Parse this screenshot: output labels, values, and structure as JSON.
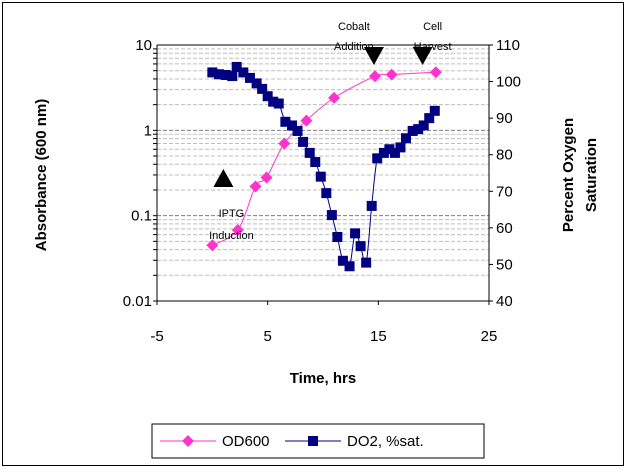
{
  "chart_data": {
    "type": "line",
    "xlabel": "Time, hrs",
    "ylabel_left": "Absorbance (600 nm)",
    "ylabel_right": "Percent Oxygen Saturation",
    "x_range": [
      -5,
      25
    ],
    "x_ticks": [
      "-5",
      "5",
      "15",
      "25"
    ],
    "y_left_range": [
      0.01,
      10
    ],
    "y_left_scale": "log",
    "y_left_ticks": [
      "0.01",
      "0.1",
      "1",
      "10"
    ],
    "y_right_range": [
      40,
      110
    ],
    "y_right_ticks": [
      "40",
      "50",
      "60",
      "70",
      "80",
      "90",
      "100",
      "110"
    ],
    "grid": "horizontal",
    "legend_position": "bottom",
    "series": [
      {
        "name": "OD600",
        "axis": "left",
        "color": "#ff33cc",
        "marker": "diamond",
        "x": [
          0,
          2.3,
          3.9,
          4.9,
          6.5,
          8.5,
          11,
          14.7,
          16.2,
          20.2
        ],
        "y": [
          0.045,
          0.068,
          0.22,
          0.28,
          0.7,
          1.3,
          2.4,
          4.3,
          4.5,
          4.8
        ]
      },
      {
        "name": "DO2, %sat.",
        "axis": "right",
        "color": "#000080",
        "marker": "square",
        "x": [
          0,
          0.6,
          1.2,
          1.8,
          2.2,
          2.8,
          3.4,
          4.0,
          4.5,
          5.0,
          5.5,
          6.0,
          6.6,
          7.2,
          7.7,
          8.2,
          8.8,
          9.3,
          9.8,
          10.3,
          10.8,
          11.3,
          11.8,
          12.4,
          12.9,
          13.4,
          13.9,
          14.4,
          14.9,
          15.5,
          16.0,
          16.5,
          17.0,
          17.5,
          18.1,
          18.6,
          19.1,
          19.6,
          20.1
        ],
        "y": [
          102.5,
          102,
          101.8,
          101.5,
          104,
          102.5,
          101,
          99.5,
          98,
          96,
          94.5,
          94,
          89,
          88,
          86.5,
          83.5,
          80.5,
          78,
          74,
          69.5,
          63.5,
          57.5,
          51,
          49.5,
          58.5,
          55,
          50.5,
          66,
          79,
          80.5,
          81.5,
          80.5,
          82,
          84.5,
          86.5,
          87,
          88,
          90,
          92
        ]
      }
    ],
    "annotations": [
      {
        "text_lines": [
          "IPTG",
          "Induction"
        ],
        "x": 1,
        "marker": "up-triangle"
      },
      {
        "text_lines": [
          "Cobalt",
          "Addition"
        ],
        "x": 14.6,
        "marker": "down-triangle"
      },
      {
        "text_lines": [
          "Cell",
          "Harvest"
        ],
        "x": 19,
        "marker": "down-triangle"
      }
    ]
  }
}
